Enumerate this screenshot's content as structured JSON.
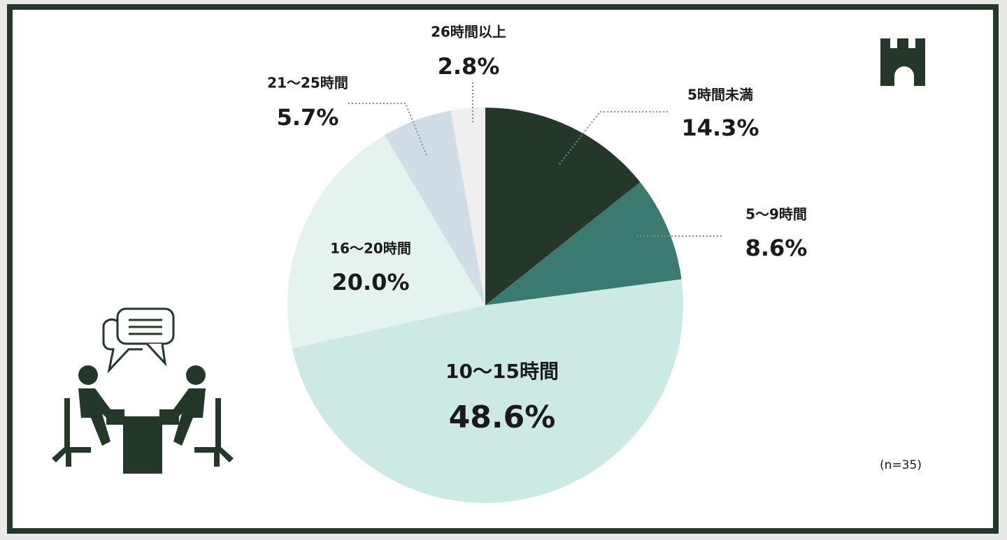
{
  "chart_data": {
    "type": "pie",
    "categories": [
      "5時間未満",
      "5～9時間",
      "10～15時間",
      "16～20時間",
      "21～25時間",
      "26時間以上"
    ],
    "values": [
      14.3,
      8.6,
      48.6,
      20.0,
      5.7,
      2.8
    ],
    "value_labels": [
      "14.3%",
      "8.6%",
      "48.6%",
      "20.0%",
      "5.7%",
      "2.8%"
    ],
    "colors": [
      "#243829",
      "#3a7a70",
      "#cde9e3",
      "#e4f2f0",
      "#d0dde6",
      "#efefef"
    ],
    "note": "(n=35)"
  }
}
